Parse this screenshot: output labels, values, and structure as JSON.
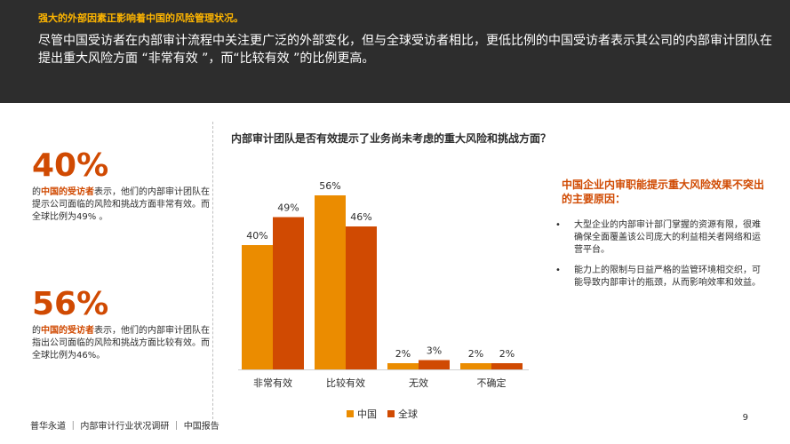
{
  "header": {
    "kicker": "强大的外部因素正影响着中国的风险管理状况。",
    "body": "尽管中国受访者在内部审计流程中关注更广泛的外部变化，但与全球受访者相比，更低比例的中国受访者表示其公司的内部审计团队在提出重大风险方面 “非常有效 ”，而“比较有效 ”的比例更高。"
  },
  "stats": [
    {
      "value": "40%",
      "prefix": "的",
      "highlight": "中国的受访者",
      "text": "表示，他们的内部审计团队在提示公司面临的风险和挑战方面非常有效。而全球比例为49% 。"
    },
    {
      "value": "56%",
      "prefix": "的",
      "highlight": "中国的受访者",
      "text": "表示，他们的内部审计团队在指出公司面临的风险和挑战方面比较有效。而全球比例为46%。"
    }
  ],
  "chart_data": {
    "type": "bar",
    "title": "内部审计团队是否有效提示了业务尚未考虑的重大风险和挑战方面？",
    "categories": [
      "非常有效",
      "比较有效",
      "无效",
      "不确定"
    ],
    "series": [
      {
        "name": "中国",
        "color": "#eb8c00",
        "values": [
          40,
          56,
          2,
          2
        ]
      },
      {
        "name": "全球",
        "color": "#d04a02",
        "values": [
          49,
          46,
          3,
          2
        ]
      }
    ],
    "value_suffix": "%",
    "ylim": [
      0,
      60
    ],
    "grid": false,
    "legend": "bottom"
  },
  "sidebar": {
    "title": "中国企业内审职能提示重大风险效果不突出的主要原因：",
    "bullet": "•",
    "items": [
      "大型企业的内部审计部门掌握的资源有限，很难确保全面覆盖该公司庞大的利益相关者网络和运营平台。",
      "能力上的限制与日益严格的监管环境相交织，可能导致内部审计的瓶颈，从而影响效率和效益。"
    ]
  },
  "footer": {
    "text": "普华永道 ｜ 内部审计行业状况调研 ｜ 中国报告",
    "page": "9"
  }
}
